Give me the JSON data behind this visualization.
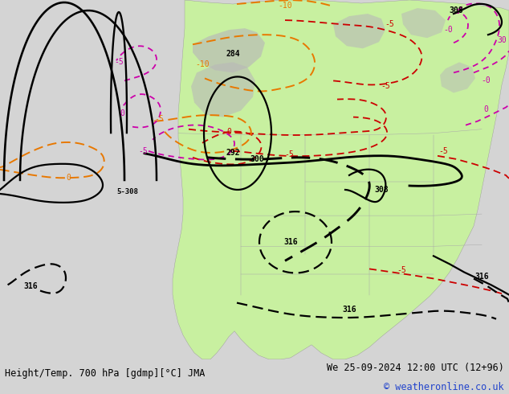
{
  "title_left": "Height/Temp. 700 hPa [gdmp][°C] JMA",
  "title_right": "We 25-09-2024 12:00 UTC (12+96)",
  "copyright": "© weatheronline.co.uk",
  "fig_width": 6.34,
  "fig_height": 4.9,
  "dpi": 100,
  "footer_bg": "#d4d4d4",
  "map_bg": "#d4d4d4",
  "land_green": "#c8f0a0",
  "land_gray": "#b8b8b8",
  "title_fontsize": 8.5,
  "label_fontsize": 7.0,
  "black_lw": 1.6,
  "red_lw": 1.3,
  "orange_lw": 1.4,
  "magenta_lw": 1.3
}
